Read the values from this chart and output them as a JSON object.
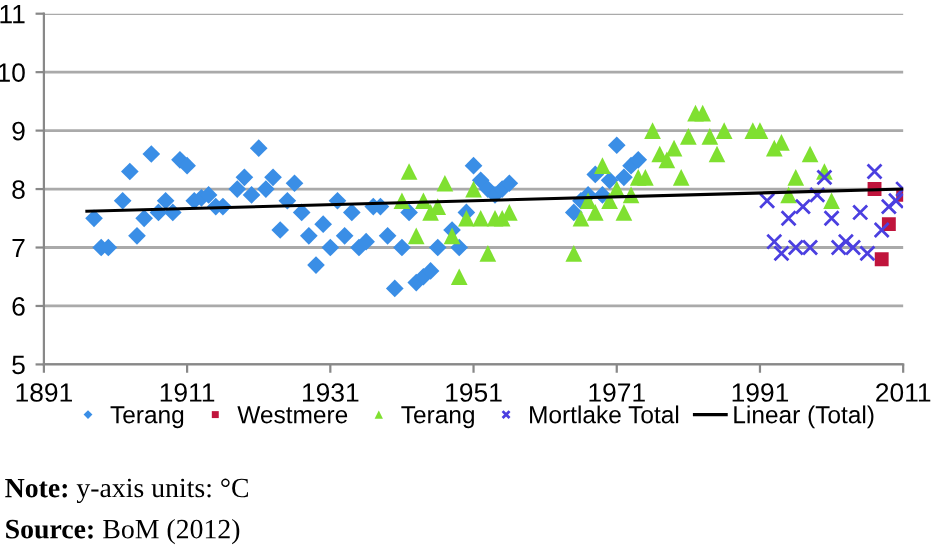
{
  "chart_data": {
    "type": "scatter",
    "xlim": [
      1891,
      2011
    ],
    "xticks": [
      1891,
      1911,
      1931,
      1951,
      1971,
      1991,
      2011
    ],
    "ylim": [
      5,
      11
    ],
    "yticks": [
      5,
      6,
      7,
      8,
      9,
      10,
      11
    ],
    "grid": "y",
    "legend": "bottom",
    "series": [
      {
        "name": "Terang",
        "color": "#3a8ee6",
        "marker": "diamond",
        "x": [
          1898,
          1899,
          1900,
          1902,
          1903,
          1904,
          1905,
          1906,
          1907,
          1908,
          1909,
          1910,
          1911,
          1912,
          1913,
          1914,
          1915,
          1916,
          1918,
          1919,
          1920,
          1921,
          1922,
          1923,
          1924,
          1925,
          1926,
          1927,
          1928,
          1929,
          1930,
          1931,
          1932,
          1933,
          1934,
          1935,
          1936,
          1937,
          1938,
          1939,
          1940,
          1941,
          1942,
          1943,
          1944,
          1945,
          1946,
          1948,
          1949,
          1950,
          1951,
          1952,
          1953,
          1954,
          1955,
          1956,
          1965,
          1966,
          1967,
          1968,
          1969,
          1970,
          1971,
          1972,
          1973,
          1974
        ],
        "values": [
          7.5,
          7.0,
          7.0,
          7.8,
          8.3,
          7.2,
          7.5,
          8.6,
          7.6,
          7.8,
          7.6,
          8.5,
          8.4,
          7.8,
          7.85,
          7.9,
          7.7,
          7.7,
          8.0,
          8.2,
          7.9,
          8.7,
          8.0,
          8.2,
          7.3,
          7.8,
          8.1,
          7.6,
          7.2,
          6.7,
          7.4,
          7.0,
          7.8,
          7.2,
          7.6,
          7.0,
          7.1,
          7.7,
          7.7,
          7.2,
          6.3,
          7.0,
          7.6,
          6.4,
          6.5,
          6.6,
          7.0,
          7.3,
          7.0,
          7.6,
          8.4,
          8.15,
          8.0,
          7.9,
          8.0,
          8.1,
          7.6,
          7.8,
          7.9,
          8.25,
          7.9,
          8.15,
          8.75,
          8.2,
          8.4,
          8.5
        ]
      },
      {
        "name": "Westmere",
        "color": "#c0143c",
        "marker": "square",
        "x": [
          2007,
          2008,
          2009,
          2011
        ],
        "values": [
          8.0,
          6.8,
          7.4,
          7.9
        ]
      },
      {
        "name": "Terang",
        "color": "#7fe030",
        "marker": "triangle",
        "x": [
          1941,
          1942,
          1943,
          1944,
          1945,
          1946,
          1947,
          1948,
          1949,
          1950,
          1951,
          1952,
          1953,
          1954,
          1955,
          1956,
          1965,
          1966,
          1967,
          1968,
          1969,
          1970,
          1971,
          1972,
          1973,
          1974,
          1975,
          1976,
          1977,
          1978,
          1979,
          1980,
          1981,
          1982,
          1983,
          1984,
          1985,
          1986,
          1990,
          1991,
          1993,
          1994,
          1995,
          1996,
          1998,
          2000,
          2001
        ],
        "values": [
          7.8,
          8.3,
          7.2,
          7.8,
          7.6,
          7.7,
          8.1,
          7.2,
          6.5,
          7.5,
          8.0,
          7.5,
          6.9,
          7.5,
          7.5,
          7.6,
          6.9,
          7.5,
          7.8,
          7.6,
          8.4,
          7.8,
          8.0,
          7.6,
          7.9,
          8.2,
          8.2,
          9.0,
          8.6,
          8.5,
          8.7,
          8.2,
          8.9,
          9.3,
          9.3,
          8.9,
          8.6,
          9.0,
          9.0,
          9.0,
          8.7,
          8.8,
          7.9,
          8.2,
          8.6,
          8.3,
          7.8
        ]
      },
      {
        "name": "Mortlake Total",
        "color": "#4b3fe0",
        "marker": "cross",
        "x": [
          1992,
          1993,
          1994,
          1995,
          1996,
          1997,
          1998,
          1999,
          2000,
          2001,
          2002,
          2003,
          2004,
          2005,
          2006,
          2007,
          2008,
          2009,
          2010,
          2011
        ],
        "values": [
          7.8,
          7.1,
          6.9,
          7.5,
          7.0,
          7.7,
          7.0,
          7.9,
          8.2,
          7.5,
          7.0,
          7.1,
          7.0,
          7.6,
          6.9,
          8.3,
          7.3,
          7.7,
          7.8,
          8.0
        ]
      },
      {
        "name": "Linear (Total)",
        "type": "line",
        "color": "#000000",
        "line_style": "solid",
        "marker": "none",
        "x": [
          1897,
          2011
        ],
        "values": [
          7.62,
          8.0
        ]
      }
    ],
    "annotations": [
      "Note: y-axis units: °C",
      "Source: BoM (2012)"
    ]
  }
}
